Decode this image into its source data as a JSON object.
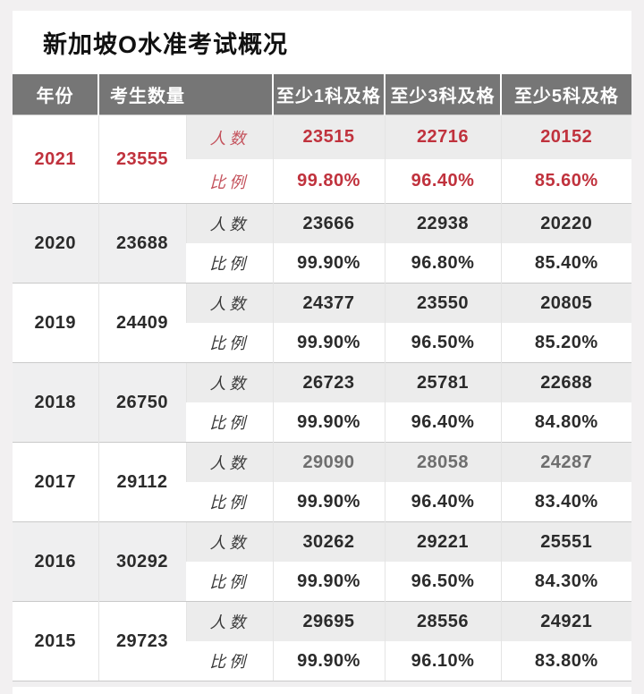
{
  "title": "新加坡O水准考试概况",
  "colors": {
    "highlight_red": "#c0323d",
    "header_bg": "#767676",
    "zebra_gray": "#efeff0",
    "count_strip_gray": "#ececec"
  },
  "table": {
    "headers": [
      {
        "label": "年份",
        "colspan": 1
      },
      {
        "label": "考生数量",
        "colspan": 2
      },
      {
        "label": "至少1科及格",
        "colspan": 1
      },
      {
        "label": "至少3科及格",
        "colspan": 1
      },
      {
        "label": "至少5科及格",
        "colspan": 1
      }
    ],
    "row_labels": {
      "count": "人数",
      "ratio": "比例"
    },
    "rows": [
      {
        "year": "2021",
        "candidates": "23555",
        "counts": [
          "23515",
          "22716",
          "20152"
        ],
        "ratios": [
          "99.80%",
          "96.40%",
          "85.60%"
        ],
        "highlight": true
      },
      {
        "year": "2020",
        "candidates": "23688",
        "counts": [
          "23666",
          "22938",
          "20220"
        ],
        "ratios": [
          "99.90%",
          "96.80%",
          "85.40%"
        ]
      },
      {
        "year": "2019",
        "candidates": "24409",
        "counts": [
          "24377",
          "23550",
          "20805"
        ],
        "ratios": [
          "99.90%",
          "96.50%",
          "85.20%"
        ]
      },
      {
        "year": "2018",
        "candidates": "26750",
        "counts": [
          "26723",
          "25781",
          "22688"
        ],
        "ratios": [
          "99.90%",
          "96.40%",
          "84.80%"
        ]
      },
      {
        "year": "2017",
        "candidates": "29112",
        "counts": [
          "29090",
          "28058",
          "24287"
        ],
        "ratios": [
          "99.90%",
          "96.40%",
          "83.40%"
        ],
        "muted_counts": true
      },
      {
        "year": "2016",
        "candidates": "30292",
        "counts": [
          "30262",
          "29221",
          "25551"
        ],
        "ratios": [
          "99.90%",
          "96.50%",
          "84.30%"
        ]
      },
      {
        "year": "2015",
        "candidates": "29723",
        "counts": [
          "29695",
          "28556",
          "24921"
        ],
        "ratios": [
          "99.90%",
          "96.10%",
          "83.80%"
        ]
      }
    ]
  },
  "chart_data": {
    "type": "table",
    "title": "新加坡O水准考试概况",
    "columns": [
      "年份",
      "考生数量",
      "至少1科及格 人数",
      "至少1科及格 比例",
      "至少3科及格 人数",
      "至少3科及格 比例",
      "至少5科及格 人数",
      "至少5科及格 比例"
    ],
    "rows": [
      [
        2021,
        23555,
        23515,
        "99.80%",
        22716,
        "96.40%",
        20152,
        "85.60%"
      ],
      [
        2020,
        23688,
        23666,
        "99.90%",
        22938,
        "96.80%",
        20220,
        "85.40%"
      ],
      [
        2019,
        24409,
        24377,
        "99.90%",
        23550,
        "96.50%",
        20805,
        "85.20%"
      ],
      [
        2018,
        26750,
        26723,
        "99.90%",
        25781,
        "96.40%",
        22688,
        "84.80%"
      ],
      [
        2017,
        29112,
        29090,
        "99.90%",
        28058,
        "96.40%",
        24287,
        "83.40%"
      ],
      [
        2016,
        30292,
        30262,
        "99.90%",
        29221,
        "96.50%",
        25551,
        "84.30%"
      ],
      [
        2015,
        29723,
        29695,
        "99.90%",
        28556,
        "96.10%",
        24921,
        "83.80%"
      ]
    ]
  }
}
